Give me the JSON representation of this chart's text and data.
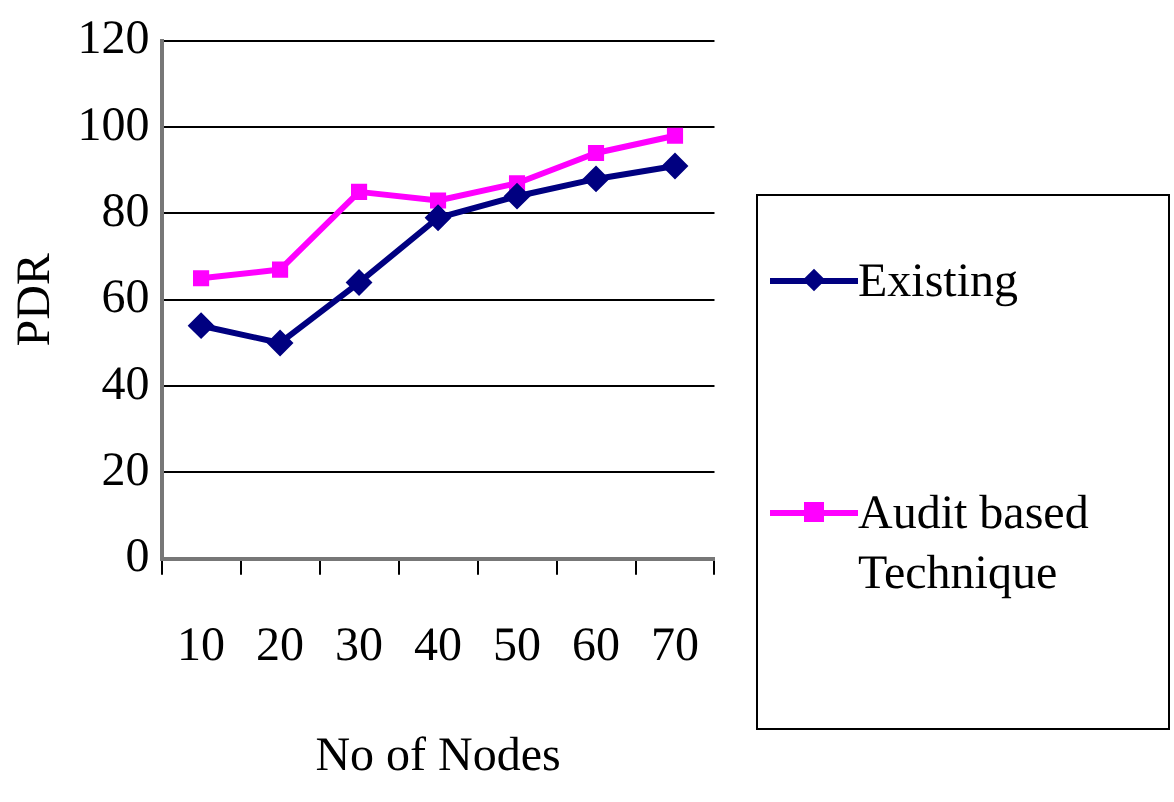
{
  "chart_data": {
    "type": "line",
    "xlabel": "No of Nodes",
    "ylabel": "PDR",
    "categories": [
      "10",
      "20",
      "30",
      "40",
      "50",
      "60",
      "70"
    ],
    "series": [
      {
        "name": "Existing",
        "color": "#000080",
        "marker": "diamond",
        "values": [
          54,
          50,
          64,
          79,
          84,
          88,
          91
        ]
      },
      {
        "name": "Audit based Technique",
        "color": "#ff00ff",
        "marker": "square",
        "values": [
          65,
          67,
          85,
          83,
          87,
          94,
          98
        ]
      }
    ],
    "ylim": [
      0,
      120
    ],
    "yticks": [
      0,
      20,
      40,
      60,
      80,
      100,
      120
    ],
    "grid": "y",
    "legend": "right",
    "line_style": "solid"
  }
}
